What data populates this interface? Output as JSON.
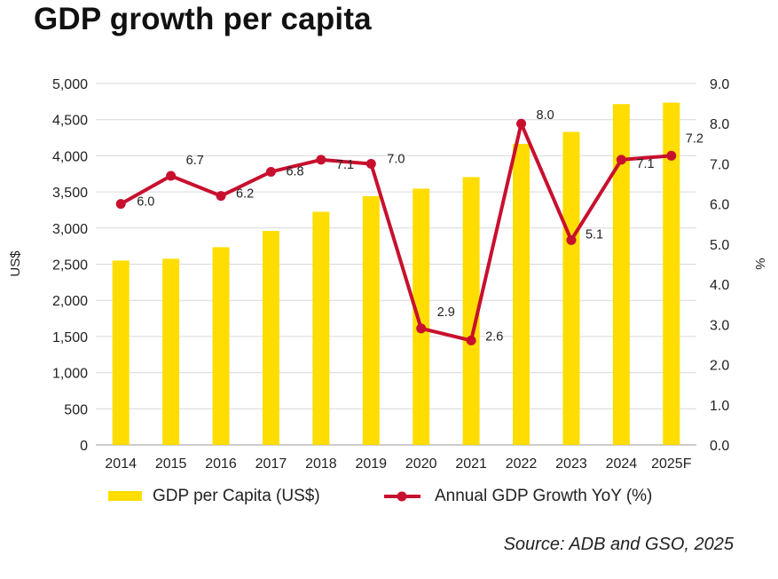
{
  "title": "GDP growth per capita",
  "source": "Source: ADB and GSO, 2025",
  "chart_data": {
    "type": "bar+line",
    "categories": [
      "2014",
      "2015",
      "2016",
      "2017",
      "2018",
      "2019",
      "2020",
      "2021",
      "2022",
      "2023",
      "2024",
      "2025F"
    ],
    "series": [
      {
        "name": "GDP per Capita (US$)",
        "type": "bar",
        "axis": "left",
        "color": "#FFDD00",
        "values": [
          2550,
          2575,
          2735,
          2960,
          3225,
          3440,
          3545,
          3705,
          4165,
          4330,
          4715,
          4735
        ]
      },
      {
        "name": "Annual GDP Growth YoY (%)",
        "type": "line",
        "axis": "right",
        "color": "#C8102E",
        "values": [
          6.0,
          6.7,
          6.2,
          6.8,
          7.1,
          7.0,
          2.9,
          2.6,
          8.0,
          5.1,
          7.1,
          7.2
        ],
        "labels": [
          "6.0",
          "6.7",
          "6.2",
          "6.8",
          "7.1",
          "7.0",
          "2.9",
          "2.6",
          "8.0",
          "5.1",
          "7.1",
          "7.2"
        ]
      }
    ],
    "y_left": {
      "label": "US$",
      "ylim": [
        0,
        5000
      ],
      "ticks": [
        "0",
        "500",
        "1,000",
        "1,500",
        "2,000",
        "2,500",
        "3,000",
        "3,500",
        "4,000",
        "4,500",
        "5,000"
      ]
    },
    "y_right": {
      "label": "%",
      "ylim": [
        0,
        9
      ],
      "ticks": [
        "0.0",
        "1.0",
        "2.0",
        "3.0",
        "4.0",
        "5.0",
        "6.0",
        "7.0",
        "8.0",
        "9.0"
      ]
    },
    "grid": true,
    "legend_position": "bottom"
  }
}
